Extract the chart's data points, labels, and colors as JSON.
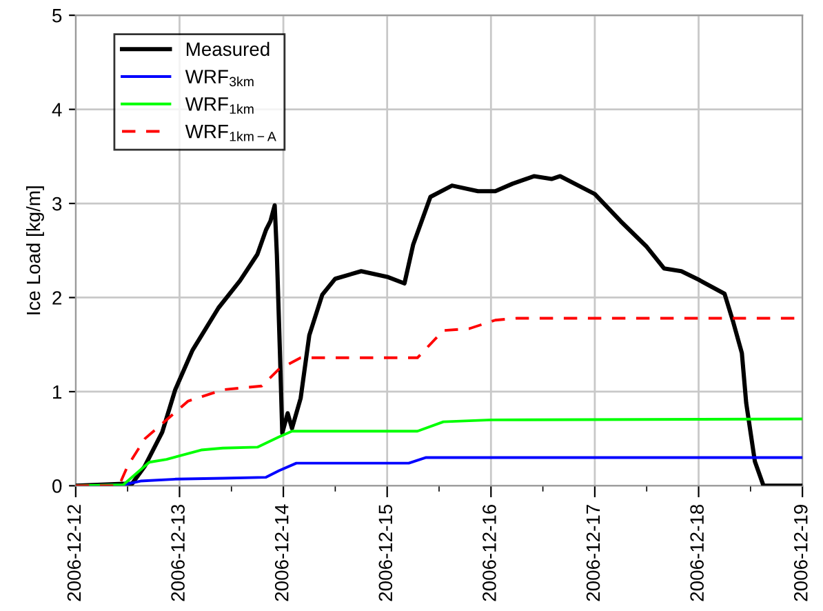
{
  "chart_data": {
    "type": "line",
    "ylabel": "Ice Load [kg/m]",
    "legend": "top left",
    "grid": true,
    "marker": "none",
    "xlim": [
      "2006-12-12",
      "2006-12-19"
    ],
    "ylim": [
      0,
      5
    ],
    "yticks": [
      0,
      1,
      2,
      3,
      4,
      5
    ],
    "xticks": [
      {
        "value": "2006-12-12",
        "label": "2006-12-12"
      },
      {
        "value": "2006-12-12T12:00",
        "label": null
      },
      {
        "value": "2006-12-13",
        "label": "2006-12-13"
      },
      {
        "value": "2006-12-13T12:00",
        "label": null
      },
      {
        "value": "2006-12-14",
        "label": "2006-12-14"
      },
      {
        "value": "2006-12-14T12:00",
        "label": null
      },
      {
        "value": "2006-12-15",
        "label": "2006-12-15"
      },
      {
        "value": "2006-12-15T12:00",
        "label": null
      },
      {
        "value": "2006-12-16",
        "label": "2006-12-16"
      },
      {
        "value": "2006-12-16T12:00",
        "label": null
      },
      {
        "value": "2006-12-17",
        "label": "2006-12-17"
      },
      {
        "value": "2006-12-17T12:00",
        "label": null
      },
      {
        "value": "2006-12-18",
        "label": "2006-12-18"
      },
      {
        "value": "2006-12-18T12:00",
        "label": null
      },
      {
        "value": "2006-12-19",
        "label": "2006-12-19"
      }
    ],
    "series": [
      {
        "name": "Measured",
        "color": "#000000",
        "line_style": "solid",
        "x": [
          "2006-12-12T00:00",
          "2006-12-12T11:00",
          "2006-12-12T13:00",
          "2006-12-12T16:00",
          "2006-12-12T20:00",
          "2006-12-12T23:00",
          "2006-12-13T03:00",
          "2006-12-13T09:00",
          "2006-12-13T14:00",
          "2006-12-13T18:00",
          "2006-12-13T20:00",
          "2006-12-13T21:00",
          "2006-12-13T22:00",
          "2006-12-13T22:30",
          "2006-12-13T23:15",
          "2006-12-13T23:45",
          "2006-12-14T01:00",
          "2006-12-14T02:00",
          "2006-12-14T04:00",
          "2006-12-14T06:00",
          "2006-12-14T09:00",
          "2006-12-14T12:00",
          "2006-12-14T18:00",
          "2006-12-15T00:00",
          "2006-12-15T04:00",
          "2006-12-15T06:00",
          "2006-12-15T10:00",
          "2006-12-15T15:00",
          "2006-12-15T21:00",
          "2006-12-16T01:00",
          "2006-12-16T05:00",
          "2006-12-16T10:00",
          "2006-12-16T14:00",
          "2006-12-16T16:00",
          "2006-12-17T00:00",
          "2006-12-17T06:00",
          "2006-12-17T12:00",
          "2006-12-17T16:00",
          "2006-12-17T20:00",
          "2006-12-18T00:00",
          "2006-12-18T06:00",
          "2006-12-18T08:00",
          "2006-12-18T10:00",
          "2006-12-18T11:00",
          "2006-12-18T13:00",
          "2006-12-18T15:00",
          "2006-12-19T00:00"
        ],
        "values": [
          0,
          0.02,
          0.02,
          0.21,
          0.57,
          1.02,
          1.44,
          1.89,
          2.18,
          2.46,
          2.72,
          2.81,
          2.98,
          2.46,
          1.36,
          0.56,
          0.77,
          0.61,
          0.93,
          1.6,
          2.03,
          2.2,
          2.28,
          2.22,
          2.15,
          2.56,
          3.07,
          3.19,
          3.13,
          3.13,
          3.21,
          3.29,
          3.26,
          3.29,
          3.1,
          2.81,
          2.54,
          2.31,
          2.28,
          2.19,
          2.04,
          1.74,
          1.41,
          0.88,
          0.26,
          0,
          0
        ]
      },
      {
        "name": "WRF$_{3km}$",
        "color": "#0000ff",
        "line_style": "solid",
        "x": [
          "2006-12-12T00:00",
          "2006-12-12T11:00",
          "2006-12-12T15:00",
          "2006-12-12T23:00",
          "2006-12-13T10:00",
          "2006-12-13T20:00",
          "2006-12-13T23:00",
          "2006-12-14T03:00",
          "2006-12-15T05:00",
          "2006-12-15T09:00",
          "2006-12-19T00:00"
        ],
        "values": [
          0,
          0.01,
          0.05,
          0.07,
          0.08,
          0.09,
          0.16,
          0.24,
          0.24,
          0.3,
          0.3
        ]
      },
      {
        "name": "WRF$_{1km}$",
        "color": "#00ff00",
        "line_style": "solid",
        "x": [
          "2006-12-12T00:00",
          "2006-12-12T11:00",
          "2006-12-12T17:00",
          "2006-12-12T21:00",
          "2006-12-13T05:00",
          "2006-12-13T10:00",
          "2006-12-13T18:00",
          "2006-12-13T23:00",
          "2006-12-14T02:00",
          "2006-12-15T07:00",
          "2006-12-15T13:00",
          "2006-12-16T00:00",
          "2006-12-19T00:00"
        ],
        "values": [
          0,
          0.01,
          0.25,
          0.28,
          0.38,
          0.4,
          0.41,
          0.52,
          0.58,
          0.58,
          0.68,
          0.7,
          0.71
        ]
      },
      {
        "name": "WRF$_{1km−A}$",
        "color": "#ff0000",
        "line_style": "dashed",
        "x": [
          "2006-12-12T00:00",
          "2006-12-12T10:00",
          "2006-12-12T12:00",
          "2006-12-12T16:00",
          "2006-12-12T20:00",
          "2006-12-13T02:00",
          "2006-12-13T10:00",
          "2006-12-13T19:00",
          "2006-12-13T23:00",
          "2006-12-14T04:00",
          "2006-12-15T07:00",
          "2006-12-15T13:00",
          "2006-12-15T19:00",
          "2006-12-16T01:00",
          "2006-12-16T06:00",
          "2006-12-19T00:00"
        ],
        "values": [
          0,
          0,
          0.21,
          0.5,
          0.66,
          0.9,
          1.02,
          1.06,
          1.24,
          1.36,
          1.36,
          1.65,
          1.67,
          1.76,
          1.78,
          1.78
        ]
      }
    ]
  }
}
